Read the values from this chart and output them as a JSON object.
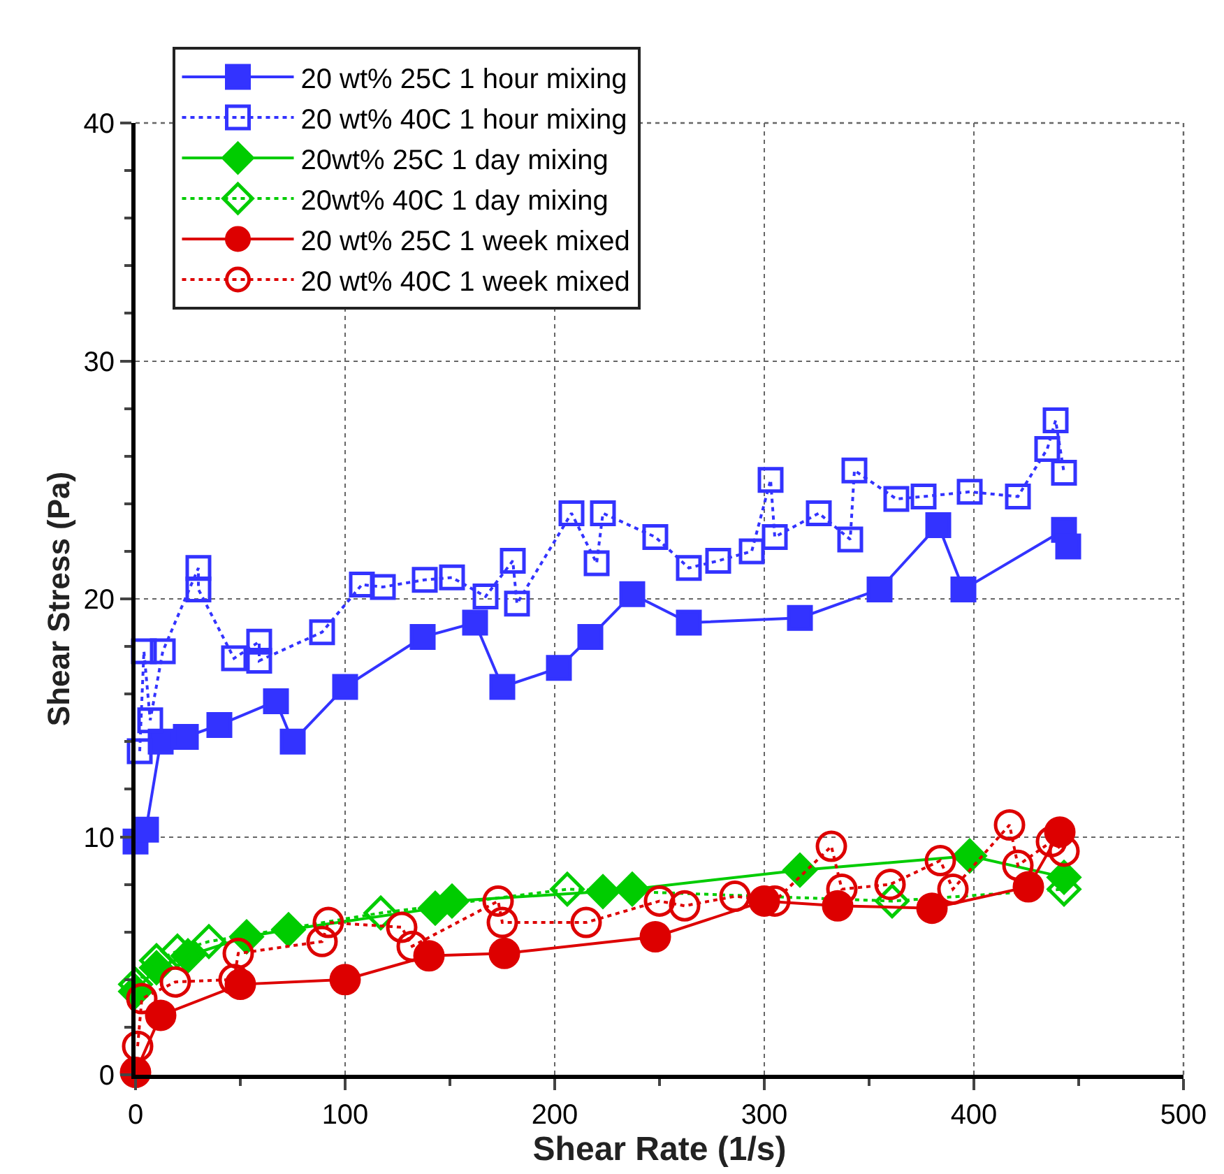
{
  "chart_data": {
    "type": "line",
    "xlabel": "Shear Rate (1/s)",
    "ylabel": "Shear Stress (Pa)",
    "xlim": [
      0,
      500
    ],
    "xticks": [
      0,
      100,
      200,
      300,
      400,
      500
    ],
    "ylim": [
      0,
      40
    ],
    "yticks": [
      0,
      10,
      20,
      30,
      40
    ],
    "grid": true,
    "legend": "top",
    "series": [
      {
        "name": "20 wt% 25C 1 hour mixing",
        "color": "#3333ff",
        "marker": "square",
        "line_style": "solid",
        "x": [
          0,
          5,
          12,
          24,
          40,
          67,
          75,
          100,
          137,
          162,
          175,
          202,
          217,
          237,
          264,
          317,
          355,
          383,
          395,
          443,
          445
        ],
        "values": [
          9.8,
          10.3,
          14.0,
          14.2,
          14.7,
          15.7,
          14.0,
          16.3,
          18.4,
          19.0,
          16.3,
          17.1,
          18.4,
          20.2,
          19.0,
          19.2,
          20.4,
          23.1,
          20.4,
          22.9,
          22.2
        ]
      },
      {
        "name": "20 wt% 40C 1 hour mixing",
        "color": "#3333ff",
        "marker": "square",
        "line_style": "dashed",
        "x": [
          2,
          4,
          7,
          13,
          30,
          30,
          47,
          59,
          59,
          89,
          108,
          118,
          138,
          151,
          167,
          180,
          182,
          208,
          220,
          223,
          248,
          264,
          278,
          294,
          303,
          305,
          326,
          341,
          343,
          363,
          376,
          398,
          421,
          435,
          439,
          443
        ],
        "values": [
          13.6,
          17.8,
          14.9,
          17.8,
          21.3,
          20.4,
          17.5,
          18.2,
          17.4,
          18.6,
          20.6,
          20.5,
          20.8,
          20.9,
          20.1,
          21.6,
          19.8,
          23.6,
          21.5,
          23.6,
          22.6,
          21.3,
          21.6,
          22.0,
          25.0,
          22.6,
          23.6,
          22.5,
          25.4,
          24.2,
          24.3,
          24.5,
          24.3,
          26.3,
          27.5,
          25.3
        ]
      },
      {
        "name": "20wt% 25C 1 day mixing",
        "color": "#00cc00",
        "marker": "diamond",
        "line_style": "solid",
        "x": [
          0,
          10,
          25,
          53,
          73,
          143,
          151,
          223,
          237,
          317,
          398,
          443
        ],
        "values": [
          3.5,
          4.5,
          5.0,
          5.8,
          6.1,
          7.0,
          7.3,
          7.7,
          7.8,
          8.6,
          9.2,
          8.3
        ]
      },
      {
        "name": "20wt% 40C 1 day mixing",
        "color": "#00cc00",
        "marker": "diamond",
        "line_style": "dashed",
        "x": [
          0,
          10,
          20,
          35,
          117,
          206,
          361,
          443
        ],
        "values": [
          3.8,
          4.8,
          5.2,
          5.6,
          6.8,
          7.8,
          7.3,
          7.8
        ]
      },
      {
        "name": "20 wt% 25C 1 week mixed",
        "color": "#dd0000",
        "marker": "circle",
        "line_style": "solid",
        "x": [
          0,
          12,
          50,
          100,
          140,
          176,
          248,
          300,
          335,
          380,
          426,
          441
        ],
        "values": [
          0.1,
          2.5,
          3.8,
          4.0,
          5.0,
          5.1,
          5.8,
          7.3,
          7.1,
          7.0,
          7.9,
          10.2
        ]
      },
      {
        "name": "20 wt% 40C 1 week mixed",
        "color": "#dd0000",
        "marker": "circle",
        "line_style": "dashed",
        "x": [
          1,
          3,
          19,
          47,
          49,
          89,
          92,
          127,
          132,
          173,
          175,
          215,
          250,
          262,
          286,
          305,
          332,
          337,
          360,
          384,
          390,
          417,
          421,
          437,
          443
        ],
        "values": [
          1.2,
          3.2,
          3.9,
          4.0,
          5.1,
          5.6,
          6.4,
          6.2,
          5.4,
          7.3,
          6.4,
          6.4,
          7.3,
          7.1,
          7.5,
          7.3,
          9.6,
          7.8,
          8.0,
          9.0,
          7.8,
          10.5,
          8.8,
          9.8,
          9.4
        ]
      }
    ]
  }
}
